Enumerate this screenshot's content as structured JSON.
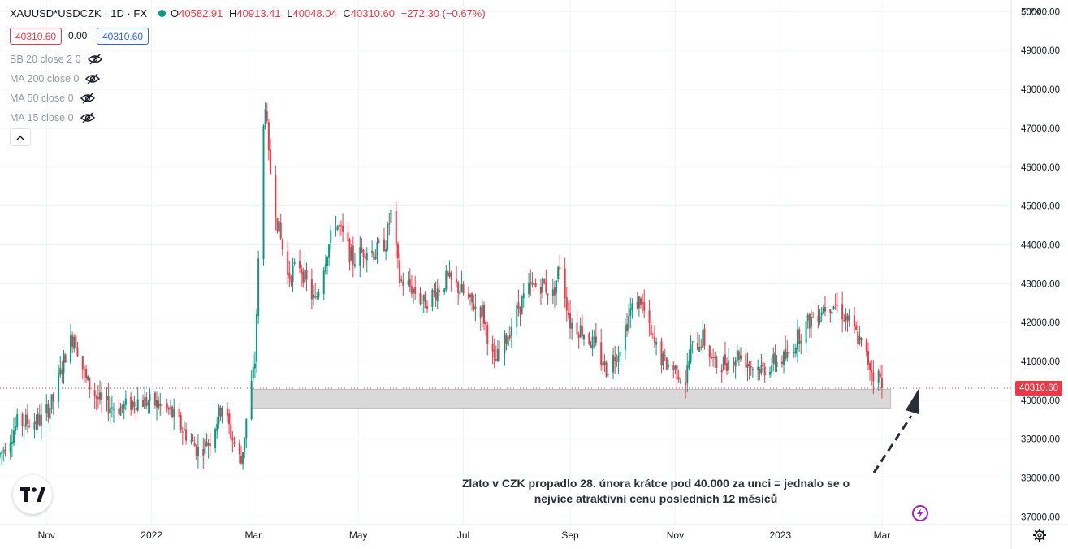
{
  "legend": {
    "symbol": "XAUUSD*USDCZK · 1D · FX",
    "open_label": "O",
    "open": "40582.91",
    "high_label": "H",
    "high": "40913.41",
    "low_label": "L",
    "low": "40048.04",
    "close_label": "C",
    "close": "40310.60",
    "change": "−272.30 (−0.67%)"
  },
  "prices": {
    "bid": "40310.60",
    "spread": "0.00",
    "ask": "40310.60"
  },
  "indicators": [
    "BB 20 close 2 0",
    "MA 200 close 0",
    "MA 50 close 0",
    "MA 15 close 0"
  ],
  "annotation": {
    "line1": "Zlato v CZK propadlo 28. února krátce pod 40.000 za unci = jednalo se o",
    "line2": "nejvíce atraktivní cenu posledních 12 měsíců"
  },
  "axis": {
    "unit": "CZK",
    "current_price_label": "40310.60"
  },
  "colors": {
    "up": "#089981",
    "down": "#f23645",
    "highlight_band": "#d9d9d9",
    "bolt": "#9c27b0"
  },
  "icons": [
    "eye-off-icon",
    "chevron-up-icon",
    "tradingview-logo-icon",
    "lightning-icon",
    "gear-icon"
  ],
  "chart_data": {
    "type": "candlestick",
    "title": "XAUUSD*USDCZK · 1D · FX",
    "ylabel": "CZK",
    "ylim": [
      36800,
      50300
    ],
    "y_ticks": [
      37000,
      38000,
      39000,
      40000,
      41000,
      42000,
      43000,
      44000,
      45000,
      46000,
      47000,
      48000,
      49000,
      50000
    ],
    "y_tick_labels": [
      "37000.00",
      "38000.00",
      "39000.00",
      "40000.00",
      "41000.00",
      "42000.00",
      "43000.00",
      "44000.00",
      "45000.00",
      "46000.00",
      "47000.00",
      "48000.00",
      "49000.00",
      "50000.00"
    ],
    "x_labels": [
      {
        "label": "Nov",
        "date": "2021-11-01"
      },
      {
        "label": "2022",
        "date": "2022-01-01"
      },
      {
        "label": "Mar",
        "date": "2022-03-01"
      },
      {
        "label": "May",
        "date": "2022-05-01"
      },
      {
        "label": "Jul",
        "date": "2022-07-01"
      },
      {
        "label": "Sep",
        "date": "2022-09-01"
      },
      {
        "label": "Nov",
        "date": "2022-11-01"
      },
      {
        "label": "2023",
        "date": "2023-01-01"
      },
      {
        "label": "Mar",
        "date": "2023-03-01"
      }
    ],
    "x_range": [
      "2021-10-05",
      "2023-05-15"
    ],
    "support_band": {
      "from": 39800,
      "to": 40280,
      "start": "2022-02-28",
      "end": "2023-03-06"
    },
    "last_price": 40310.6,
    "anchors": [
      [
        "2021-10-05",
        38600
      ],
      [
        "2021-10-15",
        39400
      ],
      [
        "2021-10-29",
        39500
      ],
      [
        "2021-11-05",
        40000
      ],
      [
        "2021-11-12",
        41200
      ],
      [
        "2021-11-17",
        41700
      ],
      [
        "2021-11-24",
        40500
      ],
      [
        "2021-12-03",
        39900
      ],
      [
        "2021-12-15",
        39800
      ],
      [
        "2021-12-24",
        40000
      ],
      [
        "2022-01-04",
        39900
      ],
      [
        "2022-01-12",
        39700
      ],
      [
        "2022-01-20",
        39200
      ],
      [
        "2022-01-28",
        38700
      ],
      [
        "2022-02-04",
        39000
      ],
      [
        "2022-02-11",
        39900
      ],
      [
        "2022-02-17",
        39000
      ],
      [
        "2022-02-22",
        38400
      ],
      [
        "2022-02-25",
        39500
      ],
      [
        "2022-03-02",
        41000
      ],
      [
        "2022-03-04",
        43500
      ],
      [
        "2022-03-07",
        47000
      ],
      [
        "2022-03-08",
        47700
      ],
      [
        "2022-03-10",
        46200
      ],
      [
        "2022-03-15",
        44600
      ],
      [
        "2022-03-21",
        43200
      ],
      [
        "2022-03-28",
        43500
      ],
      [
        "2022-04-01",
        43000
      ],
      [
        "2022-04-06",
        42500
      ],
      [
        "2022-04-12",
        43700
      ],
      [
        "2022-04-18",
        44600
      ],
      [
        "2022-04-22",
        44200
      ],
      [
        "2022-04-28",
        43600
      ],
      [
        "2022-05-05",
        43900
      ],
      [
        "2022-05-11",
        43800
      ],
      [
        "2022-05-17",
        44100
      ],
      [
        "2022-05-20",
        44800
      ],
      [
        "2022-05-25",
        43100
      ],
      [
        "2022-06-01",
        42900
      ],
      [
        "2022-06-08",
        42500
      ],
      [
        "2022-06-15",
        42800
      ],
      [
        "2022-06-21",
        43100
      ],
      [
        "2022-06-28",
        42900
      ],
      [
        "2022-07-05",
        42500
      ],
      [
        "2022-07-12",
        42300
      ],
      [
        "2022-07-19",
        40900
      ],
      [
        "2022-07-26",
        41600
      ],
      [
        "2022-08-02",
        42400
      ],
      [
        "2022-08-09",
        42900
      ],
      [
        "2022-08-16",
        43000
      ],
      [
        "2022-08-22",
        42700
      ],
      [
        "2022-08-26",
        43500
      ],
      [
        "2022-09-01",
        42000
      ],
      [
        "2022-09-08",
        41800
      ],
      [
        "2022-09-15",
        41400
      ],
      [
        "2022-09-22",
        40800
      ],
      [
        "2022-09-29",
        41300
      ],
      [
        "2022-10-06",
        42300
      ],
      [
        "2022-10-12",
        42600
      ],
      [
        "2022-10-18",
        41600
      ],
      [
        "2022-10-25",
        41000
      ],
      [
        "2022-11-01",
        40800
      ],
      [
        "2022-11-07",
        40500
      ],
      [
        "2022-11-10",
        41300
      ],
      [
        "2022-11-17",
        41600
      ],
      [
        "2022-11-24",
        40900
      ],
      [
        "2022-12-01",
        41000
      ],
      [
        "2022-12-08",
        41200
      ],
      [
        "2022-12-15",
        40900
      ],
      [
        "2022-12-22",
        40800
      ],
      [
        "2022-12-29",
        41000
      ],
      [
        "2023-01-05",
        41100
      ],
      [
        "2023-01-12",
        41700
      ],
      [
        "2023-01-19",
        42100
      ],
      [
        "2023-01-26",
        42400
      ],
      [
        "2023-02-01",
        42500
      ],
      [
        "2023-02-07",
        42200
      ],
      [
        "2023-02-14",
        41700
      ],
      [
        "2023-02-21",
        41000
      ],
      [
        "2023-02-24",
        40700
      ],
      [
        "2023-02-28",
        40580
      ],
      [
        "2023-03-01",
        40310
      ]
    ],
    "last_candle": {
      "date": "2023-03-01",
      "open": 40582.91,
      "high": 40913.41,
      "low": 40048.04,
      "close": 40310.6
    }
  }
}
